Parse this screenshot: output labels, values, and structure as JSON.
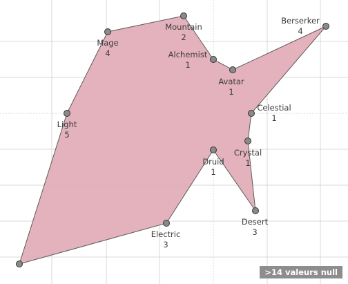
{
  "chart_data": {
    "type": "scatter",
    "polygon_fill": "#e3aeb8",
    "polygon_stroke": "#5a5a5a",
    "marker_fill": "#8a8a8a",
    "marker_stroke": "#333333",
    "grid_color": "#d9d9d9",
    "grid": true,
    "points": [
      {
        "label": "Mountain",
        "value": "2"
      },
      {
        "label": "Alchemist",
        "value": "1"
      },
      {
        "label": "Avatar",
        "value": "1"
      },
      {
        "label": "Berserker",
        "value": "4"
      },
      {
        "label": "Celestial",
        "value": "1"
      },
      {
        "label": "Crystal",
        "value": "1"
      },
      {
        "label": "Desert",
        "value": "3"
      },
      {
        "label": "Druid",
        "value": "1"
      },
      {
        "label": "Electric",
        "value": "3"
      },
      {
        "label": "",
        "value": ""
      },
      {
        "label": "Light",
        "value": "5"
      },
      {
        "label": "Mage",
        "value": "4"
      }
    ],
    "null_indicator": ">14 valeurs null"
  }
}
